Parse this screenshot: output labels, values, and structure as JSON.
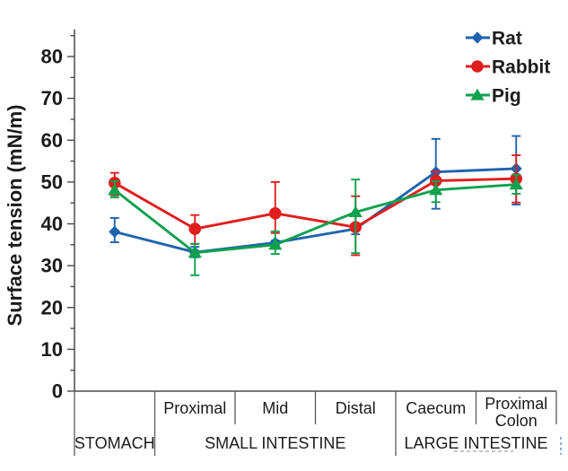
{
  "figure": {
    "background": "#ffffff",
    "text_color": "#1b1b1b",
    "axis_color": "#4a4a4a",
    "divider_color": "#5b5b5b"
  },
  "chart_data": {
    "type": "line",
    "title": "",
    "ylabel": "Surface tension (mN/m)",
    "xlabel": "",
    "ylim": [
      0,
      86.5
    ],
    "y_major_step": 10,
    "y_minor_step": 5,
    "y_tick_labels": [
      "0",
      "10",
      "20",
      "30",
      "40",
      "50",
      "60",
      "70",
      "80"
    ],
    "grid": false,
    "legend_position": "top-right",
    "categories": [
      "Stomach",
      "Proximal",
      "Mid",
      "Distal",
      "Caecum",
      "Proximal Colon"
    ],
    "sublabels": [
      "",
      "Proximal",
      "Mid",
      "Distal",
      "Caecum",
      "Proximal\nColon"
    ],
    "category_groups": [
      {
        "label": "STOMACH",
        "span": [
          0,
          0
        ],
        "tall_left_divider": true
      },
      {
        "label": "SMALL INTESTINE",
        "span": [
          1,
          3
        ],
        "tall_left_divider": true
      },
      {
        "label": "LARGE INTESTINE",
        "span": [
          4,
          5
        ],
        "tall_left_divider": true
      }
    ],
    "series": [
      {
        "name": "Rat",
        "color": "#1F63AE",
        "marker": "diamond",
        "values": [
          38.1,
          33.2,
          35.5,
          38.8,
          52.4,
          53.2
        ],
        "err_top": [
          41.4,
          34.5,
          36.0,
          40.0,
          60.3,
          61.0
        ],
        "err_bottom": [
          35.6,
          32.0,
          35.0,
          37.5,
          43.6,
          44.6
        ]
      },
      {
        "name": "Rabbit",
        "color": "#E01E1E",
        "marker": "circle",
        "values": [
          49.8,
          38.8,
          42.5,
          39.2,
          50.3,
          50.8
        ],
        "err_top": [
          52.2,
          42.1,
          50.0,
          46.6,
          52.5,
          56.4
        ],
        "err_bottom": [
          46.8,
          35.2,
          37.8,
          32.5,
          47.8,
          45.1
        ]
      },
      {
        "name": "Pig",
        "color": "#0FA14E",
        "marker": "triangle",
        "values": [
          48.1,
          33.1,
          35.0,
          42.8,
          48.1,
          49.4
        ],
        "err_top": [
          50.2,
          35.2,
          38.2,
          50.6,
          50.2,
          51.8
        ],
        "err_bottom": [
          46.3,
          27.7,
          32.8,
          33.0,
          45.2,
          47.2
        ]
      }
    ],
    "legend": [
      {
        "label": "Rat"
      },
      {
        "label": "Rabbit"
      },
      {
        "label": "Pig"
      }
    ],
    "artifacts": {
      "underline_dashes_color": "#9aa0a6",
      "right_edge_dash_color": "#7aa7d9"
    }
  }
}
